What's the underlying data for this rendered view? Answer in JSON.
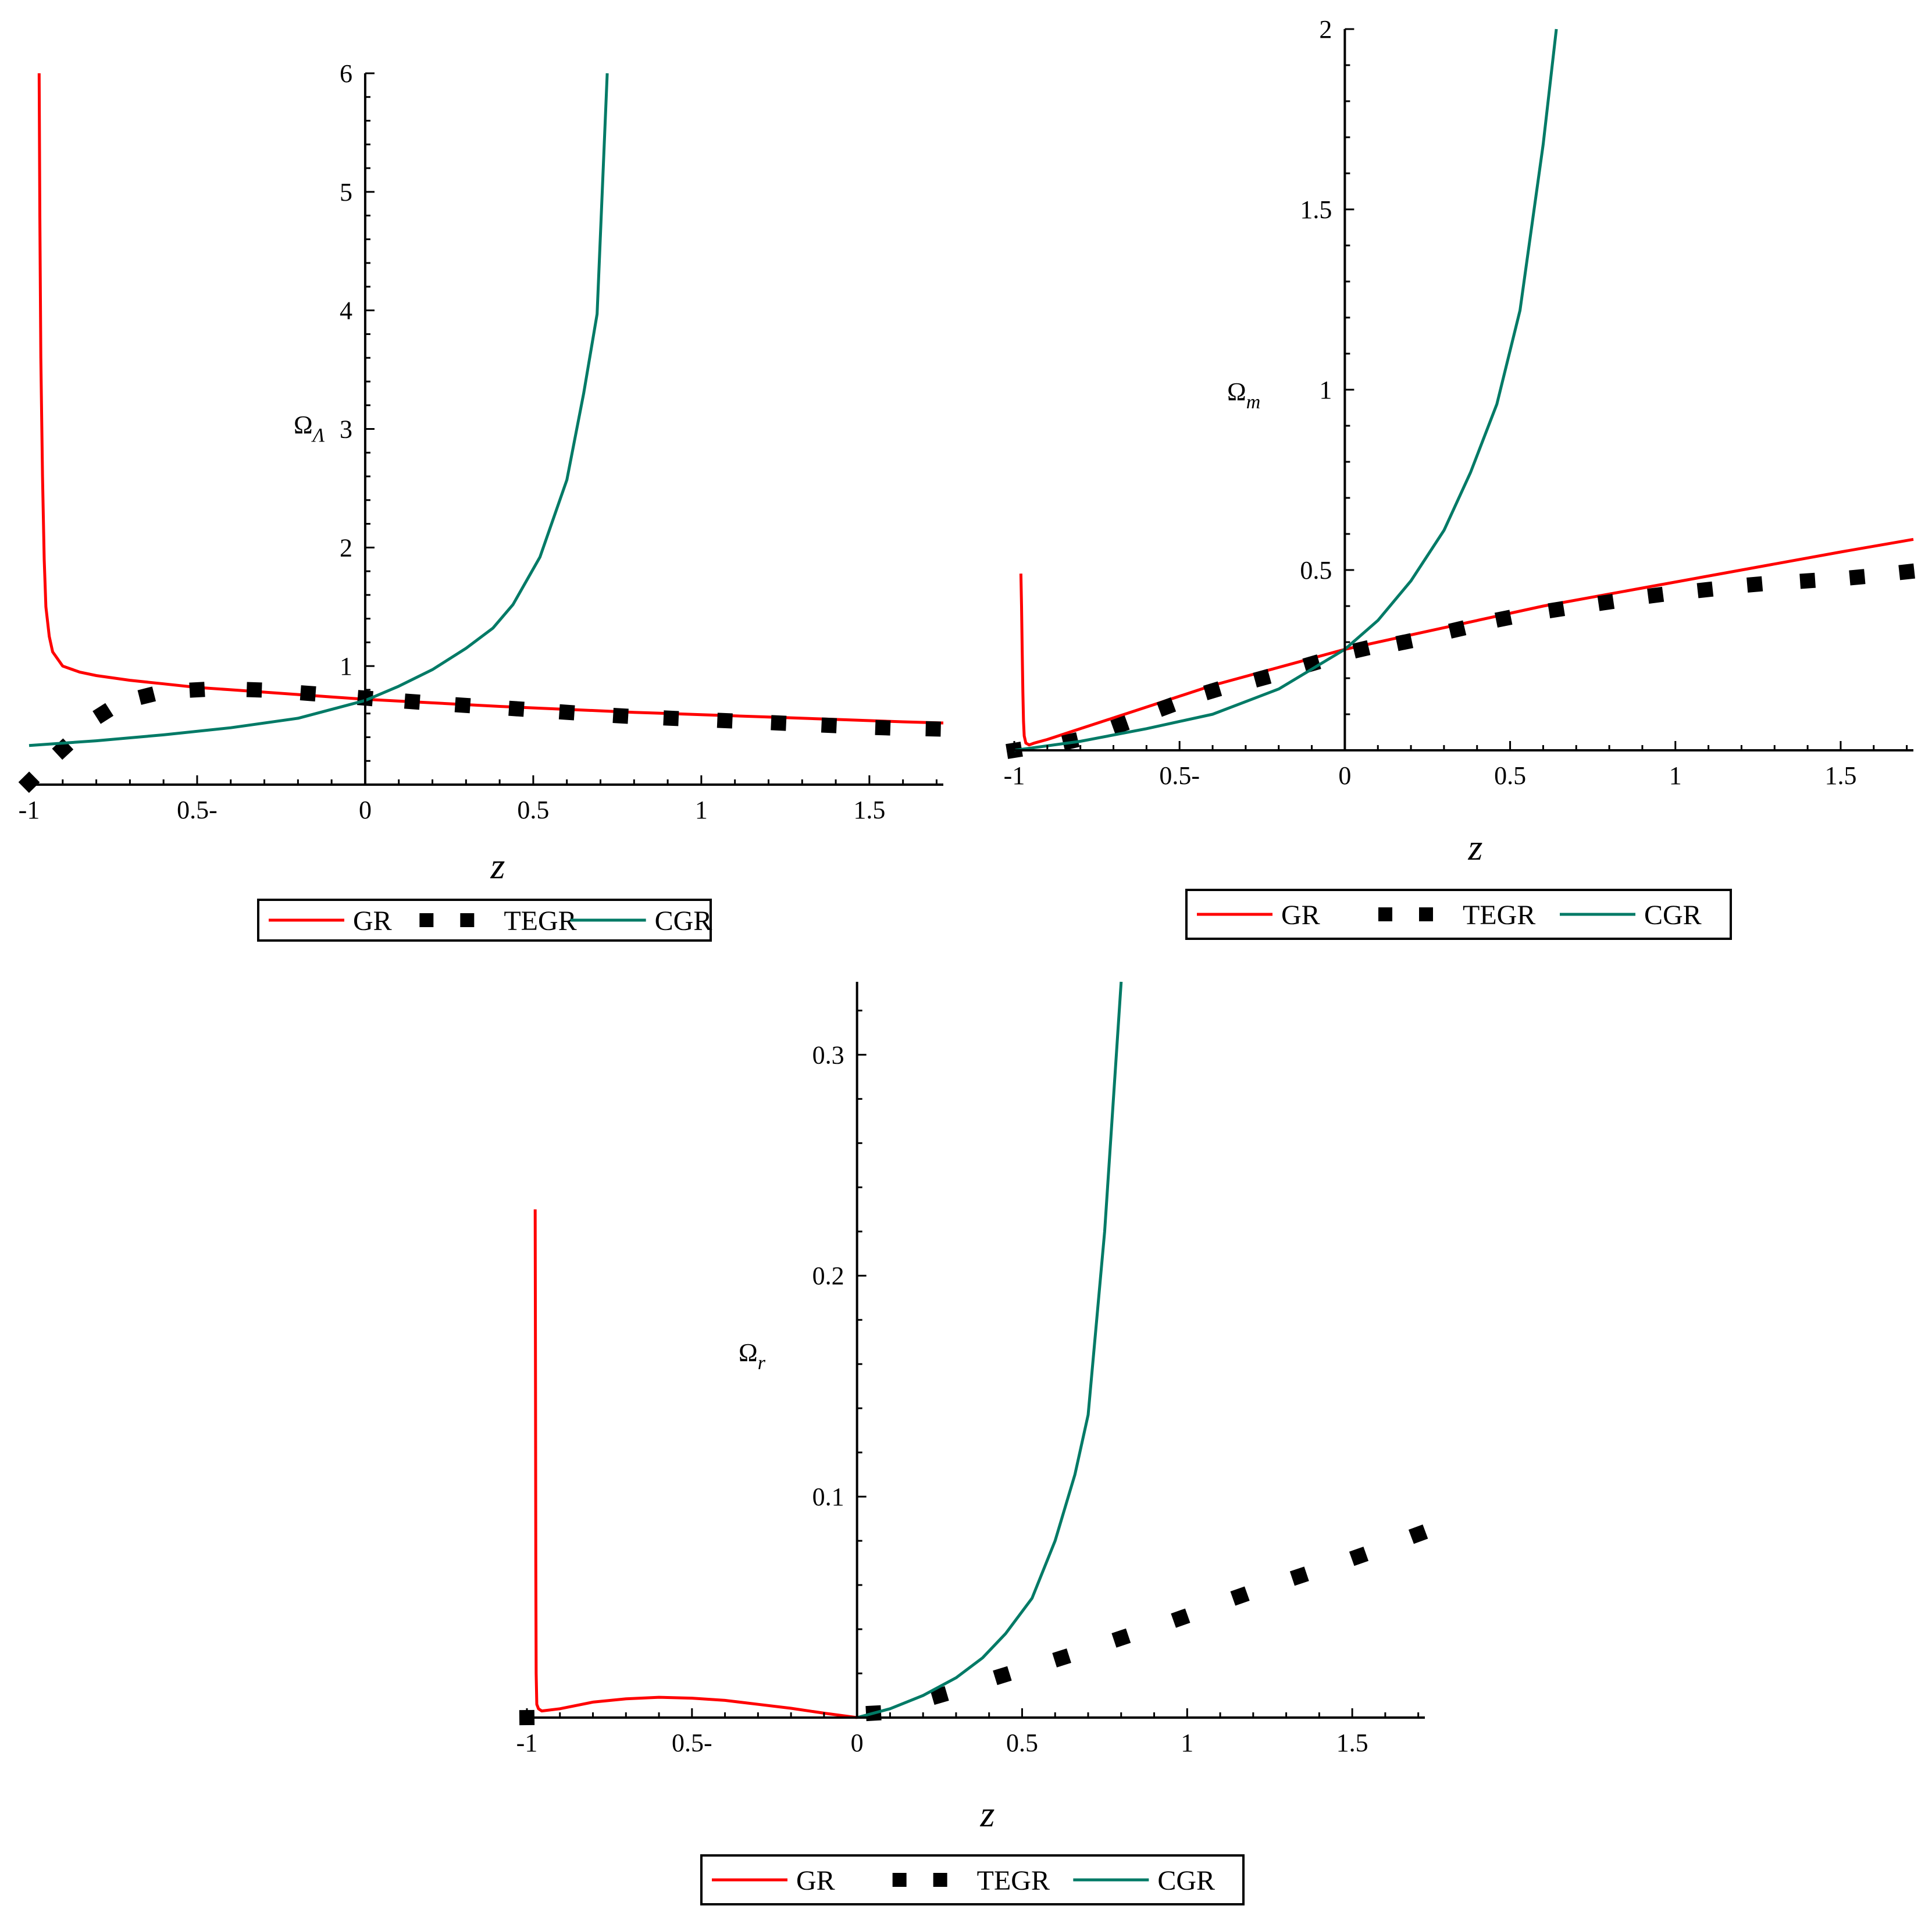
{
  "colors": {
    "GR": "#ff0000",
    "TEGR": "#000000",
    "CGR": "#007a66"
  },
  "chart_data": [
    {
      "type": "line",
      "xlabel": "z",
      "ylabel": "Ω",
      "ylabel_sub": "Λ",
      "xlim": [
        -1,
        1.72
      ],
      "ylim": [
        0,
        6
      ],
      "xticks": [
        -1,
        -0.5,
        0,
        0.5,
        1,
        1.5
      ],
      "xtick_labels": [
        "-1",
        "0.5-",
        "0",
        "0.5",
        "1",
        "1.5"
      ],
      "yticks": [
        1,
        2,
        3,
        4,
        5,
        6
      ],
      "ytick_labels": [
        "1",
        "2",
        "3",
        "4",
        "5",
        "6"
      ],
      "legend": {
        "placement": "bottom",
        "entries": [
          "GR",
          "TEGR",
          "CGR"
        ]
      },
      "series": [
        {
          "name": "GR",
          "style": "solid",
          "x": [
            -0.97,
            -0.968,
            -0.965,
            -0.96,
            -0.955,
            -0.95,
            -0.94,
            -0.93,
            -0.9,
            -0.85,
            -0.8,
            -0.7,
            -0.6,
            -0.5,
            -0.4,
            -0.3,
            -0.2,
            -0.1,
            0,
            0.2,
            0.4,
            0.6,
            0.8,
            1.0,
            1.2,
            1.4,
            1.6,
            1.72
          ],
          "y": [
            6.0,
            4.8,
            3.6,
            2.6,
            1.9,
            1.5,
            1.25,
            1.12,
            1.0,
            0.95,
            0.92,
            0.88,
            0.85,
            0.82,
            0.8,
            0.78,
            0.76,
            0.74,
            0.72,
            0.69,
            0.66,
            0.635,
            0.61,
            0.59,
            0.57,
            0.55,
            0.53,
            0.52
          ]
        },
        {
          "name": "TEGR",
          "style": "dotted",
          "x": [
            -1,
            -0.9,
            -0.78,
            -0.65,
            -0.5,
            -0.33,
            -0.17,
            0,
            0.14,
            0.29,
            0.45,
            0.6,
            0.76,
            0.91,
            1.07,
            1.23,
            1.38,
            1.54,
            1.69
          ],
          "y": [
            0.02,
            0.3,
            0.6,
            0.75,
            0.8,
            0.8,
            0.77,
            0.73,
            0.7,
            0.67,
            0.64,
            0.61,
            0.58,
            0.56,
            0.54,
            0.52,
            0.5,
            0.48,
            0.47
          ]
        },
        {
          "name": "CGR",
          "style": "solid",
          "x": [
            -1,
            -0.8,
            -0.6,
            -0.4,
            -0.2,
            0,
            0.1,
            0.2,
            0.3,
            0.38,
            0.44,
            0.52,
            0.6,
            0.65,
            0.69,
            0.72
          ],
          "y": [
            0.33,
            0.37,
            0.42,
            0.48,
            0.56,
            0.71,
            0.83,
            0.97,
            1.15,
            1.32,
            1.52,
            1.92,
            2.57,
            3.3,
            3.97,
            6.0
          ]
        }
      ]
    },
    {
      "type": "line",
      "xlabel": "z",
      "ylabel": "Ω",
      "ylabel_sub": "m",
      "xlim": [
        -1,
        1.72
      ],
      "ylim": [
        0,
        2
      ],
      "xticks": [
        -1,
        -0.5,
        0,
        0.5,
        1,
        1.5
      ],
      "xtick_labels": [
        "-1",
        "0.5-",
        "0",
        "0.5",
        "1",
        "1.5"
      ],
      "yticks": [
        0.5,
        1,
        1.5,
        2
      ],
      "ytick_labels": [
        "0.5",
        "1",
        "1.5",
        "2"
      ],
      "legend": {
        "placement": "bottom",
        "entries": [
          "GR",
          "TEGR",
          "CGR"
        ]
      },
      "series": [
        {
          "name": "GR",
          "style": "solid",
          "x": [
            -0.98,
            -0.978,
            -0.976,
            -0.974,
            -0.972,
            -0.97,
            -0.965,
            -0.955,
            -0.94,
            -0.9,
            -0.8,
            -0.6,
            -0.4,
            -0.2,
            0,
            0.3,
            0.6,
            0.9,
            1.2,
            1.5,
            1.72
          ],
          "y": [
            0.49,
            0.4,
            0.28,
            0.16,
            0.08,
            0.04,
            0.02,
            0.015,
            0.02,
            0.03,
            0.06,
            0.12,
            0.18,
            0.23,
            0.28,
            0.34,
            0.4,
            0.45,
            0.5,
            0.55,
            0.585
          ]
        },
        {
          "name": "TEGR",
          "style": "dotted",
          "x": [
            -1,
            -0.83,
            -0.68,
            -0.54,
            -0.4,
            -0.25,
            -0.1,
            0.05,
            0.18,
            0.34,
            0.48,
            0.64,
            0.79,
            0.94,
            1.09,
            1.24,
            1.4,
            1.55,
            1.7
          ],
          "y": [
            0.0,
            0.025,
            0.07,
            0.12,
            0.165,
            0.2,
            0.24,
            0.28,
            0.3,
            0.335,
            0.365,
            0.39,
            0.41,
            0.43,
            0.445,
            0.46,
            0.47,
            0.48,
            0.495
          ]
        },
        {
          "name": "CGR",
          "style": "solid",
          "x": [
            -1,
            -0.8,
            -0.6,
            -0.4,
            -0.2,
            0,
            0.1,
            0.2,
            0.3,
            0.38,
            0.46,
            0.53,
            0.6,
            0.64
          ],
          "y": [
            0.0,
            0.025,
            0.06,
            0.1,
            0.17,
            0.28,
            0.36,
            0.47,
            0.61,
            0.77,
            0.96,
            1.22,
            1.68,
            2.0
          ]
        }
      ]
    },
    {
      "type": "line",
      "xlabel": "z",
      "ylabel": "Ω",
      "ylabel_sub": "r",
      "xlim": [
        -1,
        1.72
      ],
      "ylim": [
        0,
        0.333
      ],
      "xticks": [
        -1,
        -0.5,
        0,
        0.5,
        1,
        1.5
      ],
      "xtick_labels": [
        "-1",
        "0.5-",
        "0",
        "0.5",
        "1",
        "1.5"
      ],
      "yticks": [
        0.1,
        0.2,
        0.3
      ],
      "ytick_labels": [
        "0.1",
        "0.2",
        "0.3"
      ],
      "legend": {
        "placement": "bottom",
        "entries": [
          "GR",
          "TEGR",
          "CGR"
        ]
      },
      "series": [
        {
          "name": "GR",
          "style": "solid",
          "x": [
            -0.975,
            -0.974,
            -0.973,
            -0.972,
            -0.97,
            -0.965,
            -0.955,
            -0.9,
            -0.8,
            -0.7,
            -0.6,
            -0.5,
            -0.4,
            -0.3,
            -0.2,
            -0.1,
            0
          ],
          "y": [
            0.23,
            0.15,
            0.07,
            0.02,
            0.006,
            0.004,
            0.003,
            0.004,
            0.007,
            0.0085,
            0.0092,
            0.0088,
            0.0078,
            0.006,
            0.0042,
            0.002,
            0.0
          ]
        },
        {
          "name": "TEGR",
          "style": "dotted",
          "x": [
            -1,
            0.05,
            0.25,
            0.44,
            0.62,
            0.8,
            0.98,
            1.16,
            1.34,
            1.52,
            1.7
          ],
          "y": [
            0.0,
            0.002,
            0.01,
            0.019,
            0.027,
            0.036,
            0.045,
            0.055,
            0.064,
            0.073,
            0.083
          ]
        },
        {
          "name": "CGR",
          "style": "solid",
          "x": [
            0,
            0.1,
            0.2,
            0.3,
            0.38,
            0.45,
            0.53,
            0.6,
            0.66,
            0.7,
            0.75,
            0.8
          ],
          "y": [
            0.0,
            0.004,
            0.01,
            0.018,
            0.027,
            0.038,
            0.054,
            0.08,
            0.11,
            0.137,
            0.22,
            0.333
          ]
        }
      ]
    }
  ]
}
